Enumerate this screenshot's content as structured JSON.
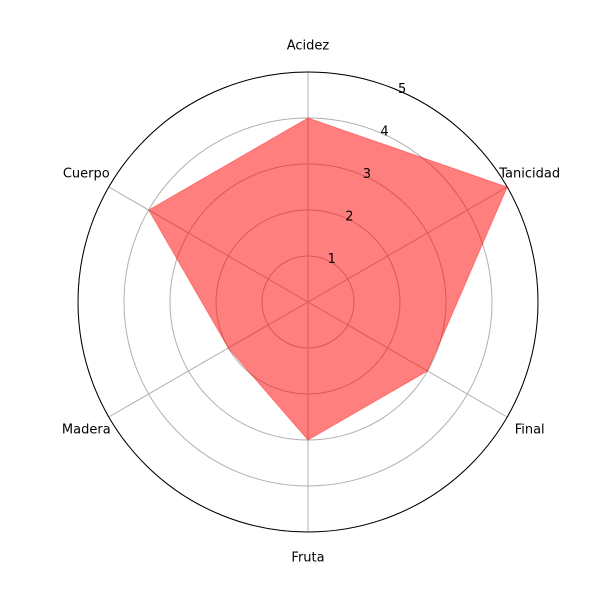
{
  "chart_data": {
    "type": "radar",
    "categories": [
      "Acidez",
      "Tanicidad",
      "Final",
      "Fruta",
      "Madera",
      "Cuerpo"
    ],
    "values": [
      4,
      5,
      3,
      3,
      2,
      4
    ],
    "rlim": [
      0,
      5
    ],
    "rticks": [
      "1",
      "2",
      "3",
      "4",
      "5"
    ],
    "grid": true,
    "colors": {
      "fill": "#ff0000",
      "fill_opacity": 0.5,
      "grid": "#b0b0b0",
      "frame": "#000000"
    }
  }
}
